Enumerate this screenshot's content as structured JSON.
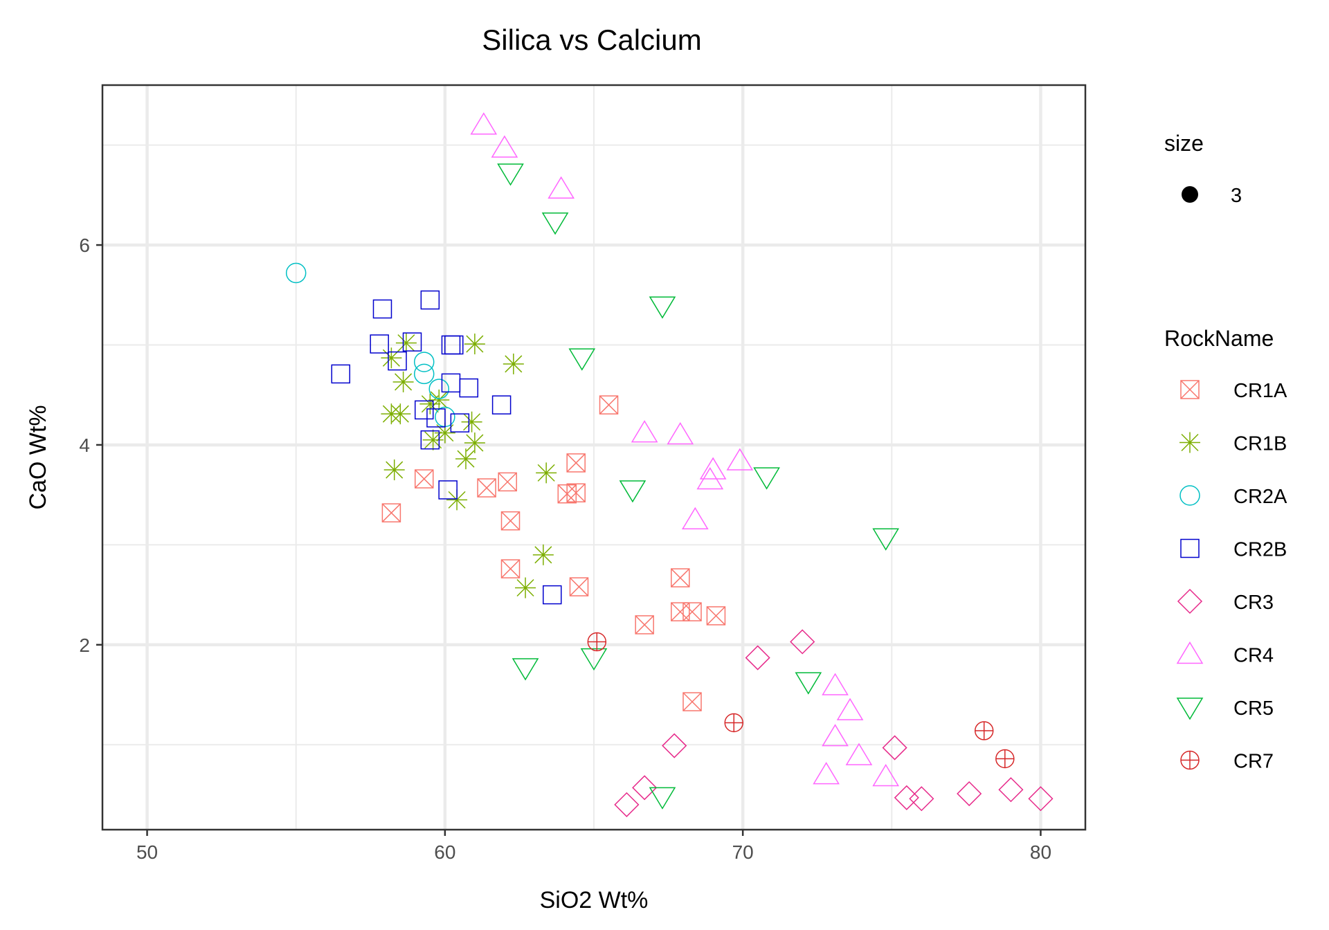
{
  "chart_data": {
    "type": "scatter",
    "title": "Silica vs Calcium",
    "xlabel": "SiO2 Wt%",
    "ylabel": "CaO Wt%",
    "xlim": [
      48.5,
      81.5
    ],
    "ylim": [
      0.15,
      7.6
    ],
    "xticks": [
      50,
      60,
      70,
      80
    ],
    "yticks": [
      2,
      4,
      6
    ],
    "grid": true,
    "legend": {
      "position": "right",
      "size_title": "size",
      "size_value": "3",
      "shape_title": "RockName"
    },
    "series": [
      {
        "name": "CR1A",
        "shape": "square-cross",
        "color": "#F8766D",
        "points": [
          [
            58.2,
            3.32
          ],
          [
            59.3,
            3.66
          ],
          [
            61.4,
            3.57
          ],
          [
            62.1,
            3.63
          ],
          [
            62.2,
            3.24
          ],
          [
            62.2,
            2.76
          ],
          [
            64.1,
            3.51
          ],
          [
            64.4,
            3.52
          ],
          [
            64.4,
            3.82
          ],
          [
            64.5,
            2.58
          ],
          [
            65.5,
            4.4
          ],
          [
            66.7,
            2.2
          ],
          [
            67.9,
            2.67
          ],
          [
            67.9,
            2.33
          ],
          [
            68.3,
            2.33
          ],
          [
            69.1,
            2.29
          ],
          [
            68.3,
            1.43
          ]
        ]
      },
      {
        "name": "CR1B",
        "shape": "asterisk",
        "color": "#7CAE00",
        "points": [
          [
            58.2,
            4.87
          ],
          [
            58.7,
            5.02
          ],
          [
            58.2,
            4.31
          ],
          [
            58.5,
            4.31
          ],
          [
            58.6,
            4.63
          ],
          [
            59.5,
            4.41
          ],
          [
            59.8,
            4.45
          ],
          [
            59.6,
            4.05
          ],
          [
            60.0,
            4.12
          ],
          [
            60.9,
            4.23
          ],
          [
            61.0,
            4.02
          ],
          [
            60.7,
            3.86
          ],
          [
            60.4,
            3.45
          ],
          [
            61.0,
            5.01
          ],
          [
            62.3,
            4.81
          ],
          [
            63.4,
            3.72
          ],
          [
            58.3,
            3.75
          ],
          [
            63.3,
            2.9
          ],
          [
            62.7,
            2.57
          ]
        ]
      },
      {
        "name": "CR2A",
        "shape": "circle",
        "color": "#00BFC4",
        "points": [
          [
            55.0,
            5.72
          ],
          [
            59.3,
            4.83
          ],
          [
            59.3,
            4.71
          ],
          [
            59.8,
            4.56
          ],
          [
            60.0,
            4.28
          ]
        ]
      },
      {
        "name": "CR2B",
        "shape": "square",
        "color": "#0000CD",
        "points": [
          [
            56.5,
            4.71
          ],
          [
            57.8,
            5.01
          ],
          [
            57.9,
            5.36
          ],
          [
            58.4,
            4.84
          ],
          [
            58.9,
            5.03
          ],
          [
            59.5,
            5.45
          ],
          [
            60.2,
            5.0
          ],
          [
            60.3,
            5.0
          ],
          [
            60.2,
            4.62
          ],
          [
            60.8,
            4.57
          ],
          [
            59.3,
            4.35
          ],
          [
            59.7,
            4.27
          ],
          [
            60.5,
            4.22
          ],
          [
            59.5,
            4.05
          ],
          [
            61.9,
            4.4
          ],
          [
            60.1,
            3.55
          ],
          [
            63.6,
            2.5
          ]
        ]
      },
      {
        "name": "CR3",
        "shape": "diamond",
        "color": "#E7298A",
        "points": [
          [
            66.1,
            0.4
          ],
          [
            66.7,
            0.57
          ],
          [
            67.7,
            0.99
          ],
          [
            70.5,
            1.87
          ],
          [
            72.0,
            2.03
          ],
          [
            75.1,
            0.97
          ],
          [
            75.5,
            0.47
          ],
          [
            76.0,
            0.46
          ],
          [
            77.6,
            0.51
          ],
          [
            79.0,
            0.55
          ],
          [
            80.0,
            0.46
          ]
        ]
      },
      {
        "name": "CR4",
        "shape": "triangle-up",
        "color": "#FF66FF",
        "points": [
          [
            61.3,
            7.2
          ],
          [
            62.0,
            6.97
          ],
          [
            63.9,
            6.56
          ],
          [
            66.7,
            4.12
          ],
          [
            67.9,
            4.1
          ],
          [
            69.0,
            3.75
          ],
          [
            68.9,
            3.65
          ],
          [
            69.9,
            3.84
          ],
          [
            68.4,
            3.25
          ],
          [
            73.1,
            1.59
          ],
          [
            73.6,
            1.34
          ],
          [
            73.1,
            1.08
          ],
          [
            73.9,
            0.89
          ],
          [
            72.8,
            0.7
          ],
          [
            74.8,
            0.68
          ]
        ]
      },
      {
        "name": "CR5",
        "shape": "triangle-down",
        "color": "#00BA38",
        "points": [
          [
            62.2,
            6.72
          ],
          [
            63.7,
            6.23
          ],
          [
            67.3,
            5.39
          ],
          [
            64.6,
            4.87
          ],
          [
            66.3,
            3.55
          ],
          [
            70.8,
            3.68
          ],
          [
            74.8,
            3.07
          ],
          [
            62.7,
            1.77
          ],
          [
            65.0,
            1.87
          ],
          [
            72.2,
            1.63
          ],
          [
            67.3,
            0.48
          ]
        ]
      },
      {
        "name": "CR7",
        "shape": "circle-plus",
        "color": "#D62728",
        "points": [
          [
            65.1,
            2.03
          ],
          [
            69.7,
            1.22
          ],
          [
            78.1,
            1.14
          ],
          [
            78.8,
            0.86
          ]
        ]
      }
    ]
  }
}
